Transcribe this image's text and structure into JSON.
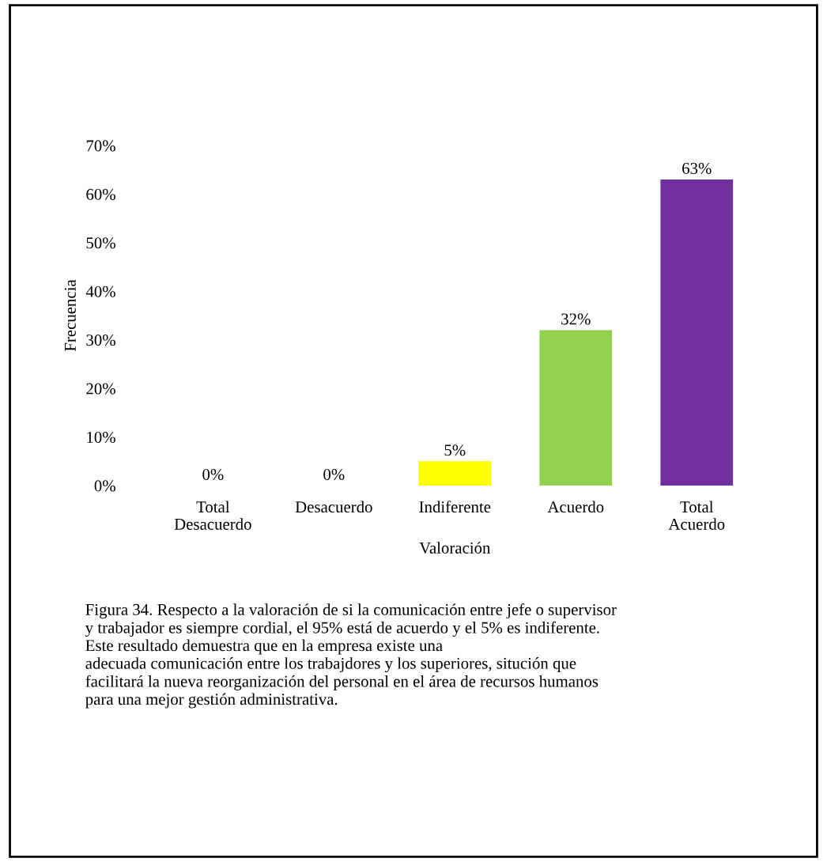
{
  "chart_data": {
    "type": "bar",
    "categories": [
      "Total\nDesacuerdo",
      "Desacuerdo",
      "Indiferente",
      "Acuerdo",
      "Total\nAcuerdo"
    ],
    "values": [
      0,
      0,
      5,
      32,
      63
    ],
    "colors": [
      "#4a7eb0",
      "#990000",
      "#ffff00",
      "#92d050",
      "#7030a0"
    ],
    "value_labels": [
      "0%",
      "0%",
      "5%",
      "32%",
      "63%"
    ],
    "xlabel": "Valoración",
    "ylabel": "Frecuencia",
    "ylim": [
      0,
      70
    ],
    "yticks": [
      {
        "value": 0,
        "label": "0%"
      },
      {
        "value": 10,
        "label": "10%"
      },
      {
        "value": 20,
        "label": "20%"
      },
      {
        "value": 30,
        "label": "30%"
      },
      {
        "value": 40,
        "label": "40%"
      },
      {
        "value": 50,
        "label": "50%"
      },
      {
        "value": 60,
        "label": "60%"
      },
      {
        "value": 70,
        "label": "70%"
      }
    ],
    "grid": false,
    "annotations": [
      "Figura 34. Respecto a la valoración de si la comunicación entre jefe o supervisor\ny trabajador es siempre cordial, el 95% está de acuerdo y el 5% es indiferente.\nEste resultado demuestra que en la empresa existe una\nadecuada comunicación entre los trabajdores y los superiores, situción que\nfacilitará la nueva reorganización del personal en el área de recursos humanos\npara una mejor gestión administrativa."
    ]
  }
}
